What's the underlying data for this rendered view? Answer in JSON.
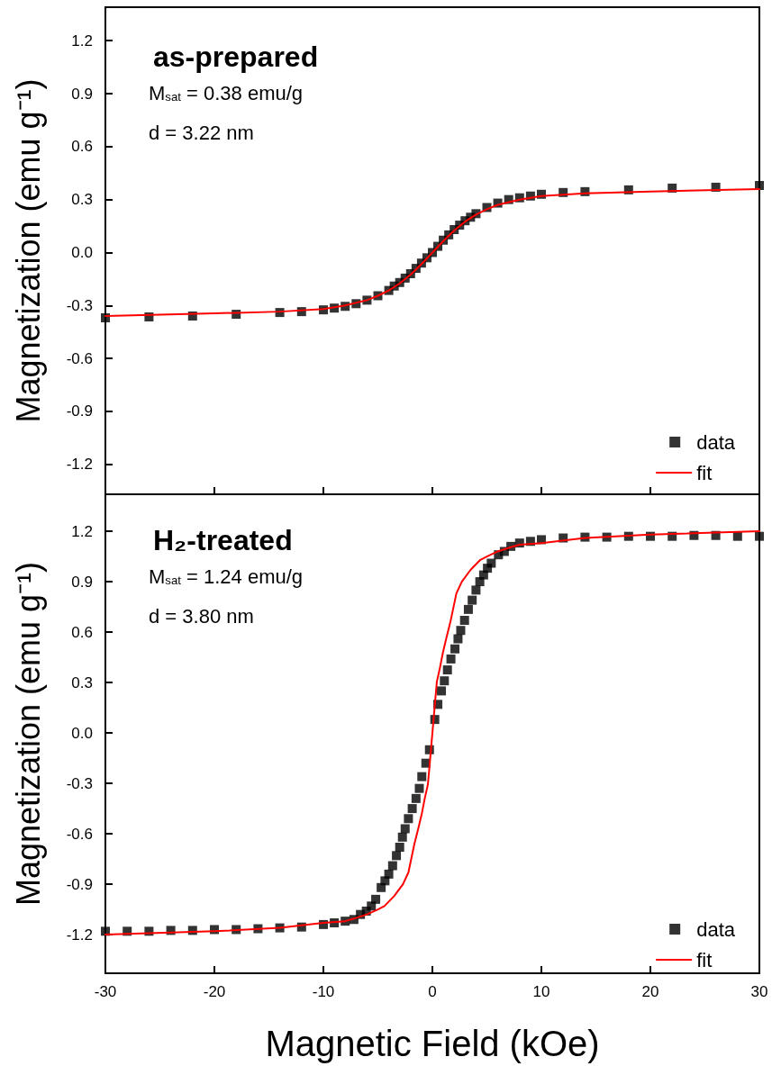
{
  "chart_data": [
    {
      "type": "scatter",
      "title": "as-prepared",
      "ylabel": "Magnetization (emu g⁻¹)",
      "annotations": [
        "M$_{sat}$ = 0.38 emu/g",
        "d = 3.22 nm"
      ],
      "xlim": [
        -30,
        30
      ],
      "xticks": [
        -30,
        -20,
        -10,
        0,
        10,
        20,
        30
      ],
      "ylim": [
        -1.37,
        1.39
      ],
      "yticks": [
        -1.2,
        -0.9,
        -0.6,
        -0.3,
        {
          "value": 0,
          "label": "0.0"
        },
        0.3,
        0.6,
        0.9,
        1.2
      ],
      "tick_labels": "y",
      "grid": false,
      "legend": "bottom right",
      "series": [
        {
          "name": "data",
          "marker": "square",
          "color": "#000000",
          "x": [
            -30,
            -26,
            -22,
            -18,
            -14,
            -12,
            -10,
            -9,
            -8,
            -7,
            -6,
            -5,
            -4,
            -3.5,
            -3,
            -2.5,
            -2,
            -1.5,
            -1,
            -0.5,
            0,
            0.5,
            1,
            1.5,
            2,
            2.5,
            3,
            3.5,
            4,
            5,
            6,
            7,
            8,
            9,
            10,
            12,
            14,
            18,
            22,
            26,
            30
          ],
          "values": [
            -0.37,
            -0.365,
            -0.36,
            -0.35,
            -0.34,
            -0.335,
            -0.325,
            -0.315,
            -0.305,
            -0.29,
            -0.27,
            -0.245,
            -0.215,
            -0.19,
            -0.17,
            -0.145,
            -0.12,
            -0.09,
            -0.06,
            -0.03,
            0.0,
            0.035,
            0.07,
            0.1,
            0.13,
            0.155,
            0.18,
            0.2,
            0.22,
            0.255,
            0.28,
            0.3,
            0.31,
            0.32,
            0.33,
            0.34,
            0.345,
            0.355,
            0.365,
            0.37,
            0.38
          ]
        },
        {
          "name": "fit",
          "type": "line",
          "marker": "none",
          "line_style": "solid",
          "color": "#ff0000",
          "x": [
            -30,
            -20,
            -14,
            -10,
            -8,
            -6,
            -5,
            -4,
            -3,
            -2,
            -1,
            0,
            1,
            2,
            3,
            4,
            5,
            6,
            8,
            10,
            14,
            20,
            30
          ],
          "values": [
            -0.36,
            -0.345,
            -0.335,
            -0.32,
            -0.3,
            -0.27,
            -0.245,
            -0.215,
            -0.175,
            -0.125,
            -0.065,
            0.0,
            0.065,
            0.125,
            0.175,
            0.215,
            0.245,
            0.27,
            0.3,
            0.32,
            0.335,
            0.345,
            0.36
          ]
        }
      ]
    },
    {
      "type": "scatter",
      "title": "H₂-treated",
      "xlabel": "Magnetic Field (kOe)",
      "ylabel": "Magnetization (emu g⁻¹)",
      "annotations": [
        "M$_{sat}$ = 1.24 emu/g",
        "d = 3.80 nm"
      ],
      "xlim": [
        -30,
        30
      ],
      "xticks": [
        -30,
        -20,
        -10,
        0,
        10,
        20,
        30
      ],
      "ylim": [
        -1.43,
        1.42
      ],
      "yticks": [
        -1.2,
        -0.9,
        -0.6,
        -0.3,
        {
          "value": 0,
          "label": "0.0"
        },
        0.3,
        0.6,
        0.9,
        1.2
      ],
      "grid": false,
      "legend": "bottom right",
      "series": [
        {
          "name": "data",
          "marker": "square",
          "color": "#000000",
          "x": [
            -30,
            -28,
            -26,
            -24,
            -22,
            -20,
            -18,
            -16,
            -14,
            -12,
            -10,
            -9,
            -8,
            -7.2,
            -6.6,
            -6.06,
            -5.6,
            -5.2,
            -4.7,
            -4.35,
            -4.0,
            -3.65,
            -3.3,
            -3.0,
            -2.75,
            -2.5,
            -2.2,
            -1.85,
            -1.5,
            -1.2,
            -0.97,
            -0.6,
            -0.27,
            0.22,
            0.5,
            0.83,
            1.1,
            1.38,
            1.7,
            2.07,
            2.35,
            2.6,
            2.95,
            3.3,
            3.65,
            4.0,
            4.35,
            4.7,
            5.05,
            5.4,
            6.06,
            6.6,
            7.2,
            8,
            9,
            10,
            12,
            14,
            16,
            18,
            20,
            22,
            24,
            26,
            28,
            30
          ],
          "values": [
            -1.18,
            -1.18,
            -1.18,
            -1.175,
            -1.175,
            -1.17,
            -1.17,
            -1.165,
            -1.16,
            -1.155,
            -1.14,
            -1.13,
            -1.12,
            -1.11,
            -1.08,
            -1.06,
            -1.03,
            -0.99,
            -0.92,
            -0.88,
            -0.84,
            -0.79,
            -0.73,
            -0.68,
            -0.62,
            -0.57,
            -0.51,
            -0.45,
            -0.39,
            -0.33,
            -0.26,
            -0.18,
            -0.1,
            0.08,
            0.17,
            0.25,
            0.31,
            0.375,
            0.44,
            0.5,
            0.56,
            0.61,
            0.67,
            0.735,
            0.79,
            0.85,
            0.9,
            0.94,
            0.98,
            1.01,
            1.06,
            1.08,
            1.11,
            1.13,
            1.14,
            1.15,
            1.16,
            1.165,
            1.165,
            1.17,
            1.17,
            1.17,
            1.175,
            1.175,
            1.17,
            1.17
          ]
        },
        {
          "name": "fit",
          "type": "line",
          "marker": "none",
          "line_style": "solid",
          "color": "#ff0000",
          "x": [
            -30,
            -20,
            -14,
            -10,
            -8,
            -7.2,
            -6,
            -5,
            -4.4,
            -3.5,
            -2.7,
            -2.2,
            -1.65,
            -1.3,
            -0.97,
            -0.7,
            -0.41,
            -0.2,
            0,
            0.2,
            0.41,
            0.7,
            0.97,
            1.3,
            1.65,
            2.2,
            2.7,
            3.5,
            4.4,
            5,
            6,
            7.2,
            8,
            10,
            14,
            20,
            30
          ],
          "values": [
            -1.2,
            -1.18,
            -1.16,
            -1.13,
            -1.12,
            -1.105,
            -1.08,
            -1.05,
            -1.03,
            -0.97,
            -0.9,
            -0.83,
            -0.66,
            -0.57,
            -0.48,
            -0.39,
            -0.305,
            -0.15,
            0.0,
            0.15,
            0.305,
            0.39,
            0.48,
            0.57,
            0.66,
            0.83,
            0.9,
            0.97,
            1.03,
            1.05,
            1.08,
            1.105,
            1.12,
            1.13,
            1.16,
            1.18,
            1.2
          ]
        }
      ]
    }
  ]
}
